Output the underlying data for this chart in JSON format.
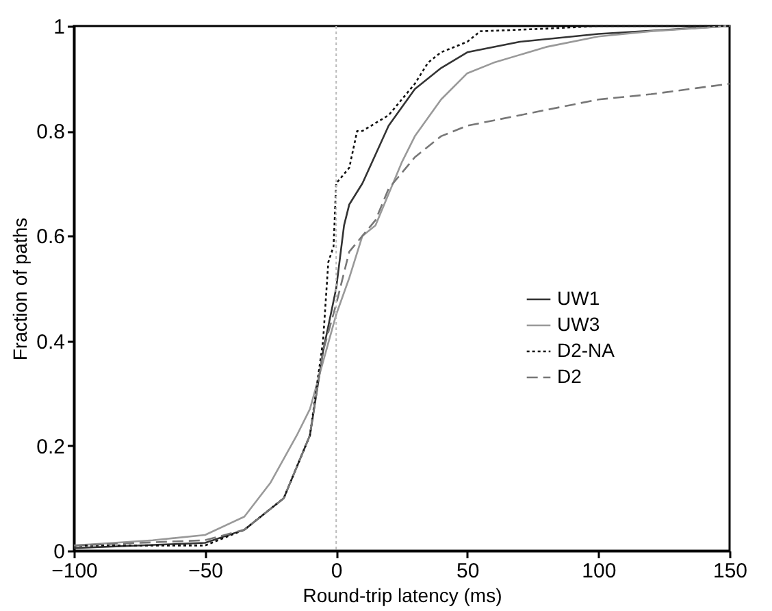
{
  "chart_data": {
    "type": "line",
    "xlabel": "Round-trip latency (ms)",
    "ylabel": "Fraction of paths",
    "xlim": [
      -100,
      150
    ],
    "xticks": [
      -100,
      -50,
      0,
      50,
      100,
      150
    ],
    "ylim": [
      0,
      1
    ],
    "yticks": [
      0,
      0.2,
      0.4,
      0.6,
      0.8,
      1
    ],
    "grid": false,
    "legend": "right",
    "marker": "none",
    "ref_lines": [
      {
        "axis": "x",
        "value": 0,
        "color": "#bbbbbb",
        "line_style": "dotted"
      }
    ],
    "series": [
      {
        "name": "UW1",
        "color": "#333333",
        "line_style": "solid",
        "x": [
          -100,
          -50,
          -35,
          -20,
          -10,
          -5,
          0,
          3,
          5,
          10,
          20,
          30,
          40,
          50,
          70,
          100,
          150
        ],
        "values": [
          0.005,
          0.015,
          0.04,
          0.1,
          0.22,
          0.38,
          0.5,
          0.62,
          0.66,
          0.7,
          0.81,
          0.88,
          0.92,
          0.95,
          0.97,
          0.985,
          1.0
        ]
      },
      {
        "name": "UW3",
        "color": "#999999",
        "line_style": "solid",
        "x": [
          -100,
          -70,
          -50,
          -35,
          -25,
          -15,
          -10,
          -5,
          0,
          5,
          10,
          15,
          20,
          25,
          30,
          40,
          50,
          60,
          80,
          100,
          120,
          150
        ],
        "values": [
          0.01,
          0.02,
          0.03,
          0.065,
          0.13,
          0.22,
          0.27,
          0.36,
          0.45,
          0.52,
          0.6,
          0.62,
          0.68,
          0.74,
          0.79,
          0.86,
          0.91,
          0.93,
          0.96,
          0.98,
          0.99,
          1.0
        ]
      },
      {
        "name": "D2-NA",
        "color": "#111111",
        "line_style": "dotted",
        "x": [
          -100,
          -50,
          -35,
          -20,
          -10,
          -5,
          -3,
          -1,
          0,
          5,
          8,
          10,
          20,
          30,
          35,
          40,
          50,
          55,
          80,
          100,
          150
        ],
        "values": [
          0.01,
          0.01,
          0.04,
          0.1,
          0.22,
          0.4,
          0.55,
          0.58,
          0.7,
          0.73,
          0.8,
          0.8,
          0.83,
          0.89,
          0.93,
          0.95,
          0.97,
          0.99,
          0.995,
          1.0,
          1.0
        ]
      },
      {
        "name": "D2",
        "color": "#777777",
        "line_style": "dashed",
        "x": [
          -100,
          -50,
          -35,
          -20,
          -10,
          -5,
          0,
          5,
          10,
          15,
          20,
          30,
          40,
          50,
          70,
          90,
          100,
          120,
          150
        ],
        "values": [
          0.01,
          0.02,
          0.04,
          0.1,
          0.22,
          0.38,
          0.47,
          0.57,
          0.6,
          0.63,
          0.69,
          0.75,
          0.79,
          0.81,
          0.83,
          0.85,
          0.86,
          0.87,
          0.89
        ]
      }
    ]
  }
}
